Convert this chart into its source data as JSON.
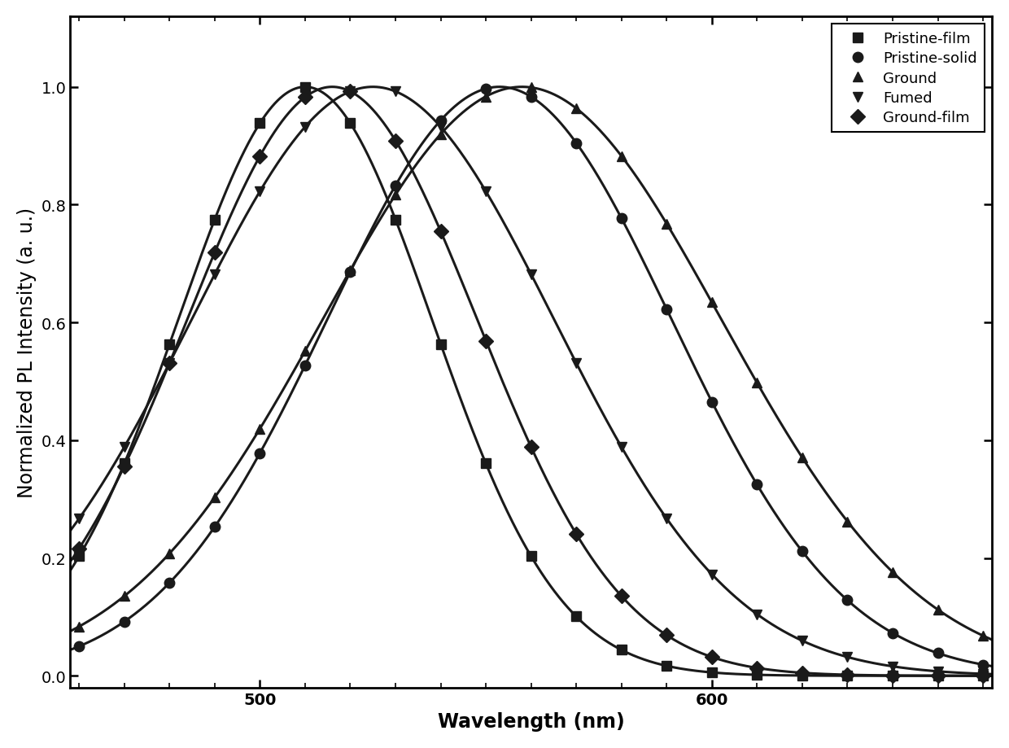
{
  "title": "",
  "xlabel": "Wavelength (nm)",
  "ylabel": "Normalized PL Intensity (a. u.)",
  "xlim": [
    458,
    662
  ],
  "ylim": [
    -0.02,
    1.12
  ],
  "xticks": [
    500,
    600
  ],
  "yticks": [
    0.0,
    0.2,
    0.4,
    0.6,
    0.8,
    1.0
  ],
  "series": [
    {
      "label": "Pristine-film",
      "marker": "s",
      "peak": 510,
      "sigma": 28
    },
    {
      "label": "Pristine-solid",
      "marker": "o",
      "peak": 553,
      "sigma": 38
    },
    {
      "label": "Ground",
      "marker": "^",
      "peak": 558,
      "sigma": 44
    },
    {
      "label": "Fumed",
      "marker": "v",
      "peak": 525,
      "sigma": 40
    },
    {
      "label": "Ground-film",
      "marker": "D",
      "peak": 516,
      "sigma": 32
    }
  ],
  "background_color": "#ffffff",
  "line_color": "#1a1a1a",
  "line_width": 2.2,
  "marker_size": 9,
  "marker_interval": 10,
  "legend_fontsize": 13,
  "axis_label_fontsize": 17,
  "tick_fontsize": 14
}
